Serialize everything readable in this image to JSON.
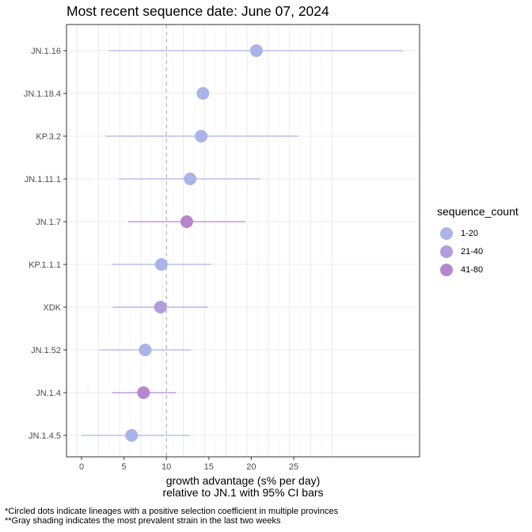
{
  "chart_data": {
    "type": "scatter",
    "title": "Most recent sequence date: June 07, 2024",
    "xlabel_line1": "growth advantage (s% per day)",
    "xlabel_line2": "relative to  JN.1  with 95% CI bars",
    "xlim": [
      -3,
      30
    ],
    "x_ticks": [
      0,
      5,
      10,
      15,
      20,
      25
    ],
    "reference_line_x": 10,
    "grid": true,
    "legend_placement": "right",
    "legend_title": "sequence_count",
    "legend": [
      {
        "label": "1-20",
        "color": "#aab4e8"
      },
      {
        "label": "21-40",
        "color": "#b29ddf"
      },
      {
        "label": "41-80",
        "color": "#b886cf"
      }
    ],
    "categories": [
      "JN.1.16",
      "JN.1.18.4",
      "KP.3.2",
      "JN.1.11.1",
      "JN.1.7",
      "KP.1.1.1",
      "XDK",
      "JN.1.52",
      "JN.1.4",
      "JN.1.4.5"
    ],
    "points": [
      {
        "lineage": "JN.1.16",
        "x": 20.6,
        "ci_low": 3.2,
        "ci_high": 37.8,
        "sequence_count": "1-20"
      },
      {
        "lineage": "JN.1.18.4",
        "x": 14.3,
        "ci_low": null,
        "ci_high": null,
        "sequence_count": "1-20"
      },
      {
        "lineage": "KP.3.2",
        "x": 14.1,
        "ci_low": 2.8,
        "ci_high": 25.5,
        "sequence_count": "1-20"
      },
      {
        "lineage": "JN.1.11.1",
        "x": 12.8,
        "ci_low": 4.4,
        "ci_high": 21.1,
        "sequence_count": "1-20"
      },
      {
        "lineage": "JN.1.7",
        "x": 12.4,
        "ci_low": 5.5,
        "ci_high": 19.3,
        "sequence_count": "41-80"
      },
      {
        "lineage": "KP.1.1.1",
        "x": 9.4,
        "ci_low": 3.6,
        "ci_high": 15.3,
        "sequence_count": "1-20"
      },
      {
        "lineage": "XDK",
        "x": 9.3,
        "ci_low": 3.7,
        "ci_high": 14.9,
        "sequence_count": "21-40"
      },
      {
        "lineage": "JN.1.52",
        "x": 7.5,
        "ci_low": 2.1,
        "ci_high": 12.9,
        "sequence_count": "1-20"
      },
      {
        "lineage": "JN.1.4",
        "x": 7.3,
        "ci_low": 3.6,
        "ci_high": 11.1,
        "sequence_count": "41-80"
      },
      {
        "lineage": "JN.1.4.5",
        "x": 5.9,
        "ci_low": 0.0,
        "ci_high": 12.7,
        "sequence_count": "1-20"
      }
    ]
  },
  "footnotes": [
    "*Circled dots indicate lineages with a positive selection coefficient in multiple provinces",
    "**Gray shading indicates the most prevalent strain in the last two weeks"
  ]
}
